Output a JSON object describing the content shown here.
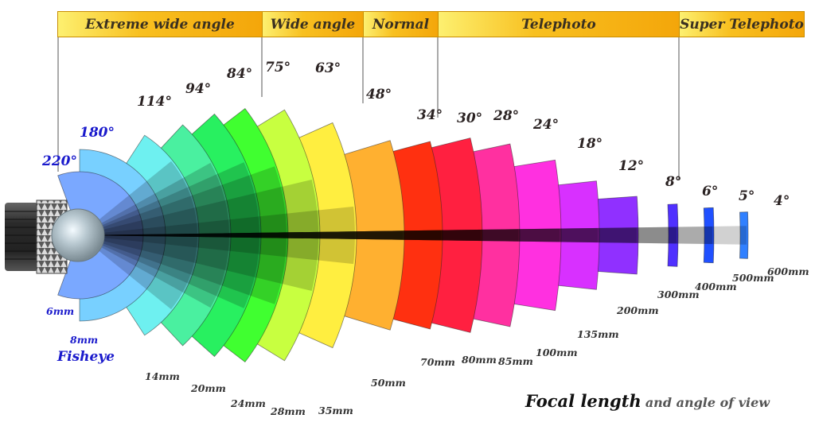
{
  "categories": [
    {
      "label": "Extreme wide angle",
      "color": "#5a4a20"
    },
    {
      "label": "Wide angle"
    },
    {
      "label": "Normal"
    },
    {
      "label": "Telephoto"
    },
    {
      "label": "Super Telephoto"
    }
  ],
  "lenses": [
    {
      "mm": "6mm",
      "angle": "220°",
      "value": 220,
      "color": "#7aa8ff",
      "fisheye": true
    },
    {
      "mm": "8mm",
      "angle": "180°",
      "value": 180,
      "color": "#78d0ff",
      "fisheye": true
    },
    {
      "mm": "14mm",
      "angle": "114°",
      "value": 114,
      "color": "#6ef0f0"
    },
    {
      "mm": "20mm",
      "angle": "94°",
      "value": 94,
      "color": "#4af0a0"
    },
    {
      "mm": "24mm",
      "angle": "84°",
      "value": 84,
      "color": "#28f060"
    },
    {
      "mm": "28mm",
      "angle": "75°",
      "value": 75,
      "color": "#40ff30"
    },
    {
      "mm": "35mm",
      "angle": "63°",
      "value": 63,
      "color": "#c8ff40"
    },
    {
      "mm": "50mm",
      "angle": "48°",
      "value": 48,
      "color": "#ffee40"
    },
    {
      "mm": "70mm",
      "angle": "34°",
      "value": 34,
      "color": "#ffb030"
    },
    {
      "mm": "80mm",
      "angle": "30°",
      "value": 30,
      "color": "#ff3010"
    },
    {
      "mm": "85mm",
      "angle": "28°",
      "value": 28,
      "color": "#ff2040"
    },
    {
      "mm": "100mm",
      "angle": "24°",
      "value": 24,
      "color": "#ff30a0"
    },
    {
      "mm": "135mm",
      "angle": "18°",
      "value": 18,
      "color": "#ff30e0"
    },
    {
      "mm": "200mm",
      "angle": "12°",
      "value": 12,
      "color": "#d830ff"
    },
    {
      "mm": "300mm",
      "angle": "8°",
      "value": 8,
      "color": "#9030ff"
    },
    {
      "mm": "400mm",
      "angle": "6°",
      "value": 6,
      "color": "#5030ff"
    },
    {
      "mm": "500mm",
      "angle": "5°",
      "value": 5,
      "color": "#2050ff"
    },
    {
      "mm": "600mm",
      "angle": "4°",
      "value": 4,
      "color": "#3080ff"
    }
  ],
  "fisheye_label": "Fisheye",
  "footer": {
    "focal": "Focal length",
    "rest": "and angle of view"
  },
  "colors": {
    "band_border": "#c98d00",
    "fisheye_text": "#1a1acc",
    "angle_text": "#2a2222",
    "mm_text": "#333333"
  }
}
